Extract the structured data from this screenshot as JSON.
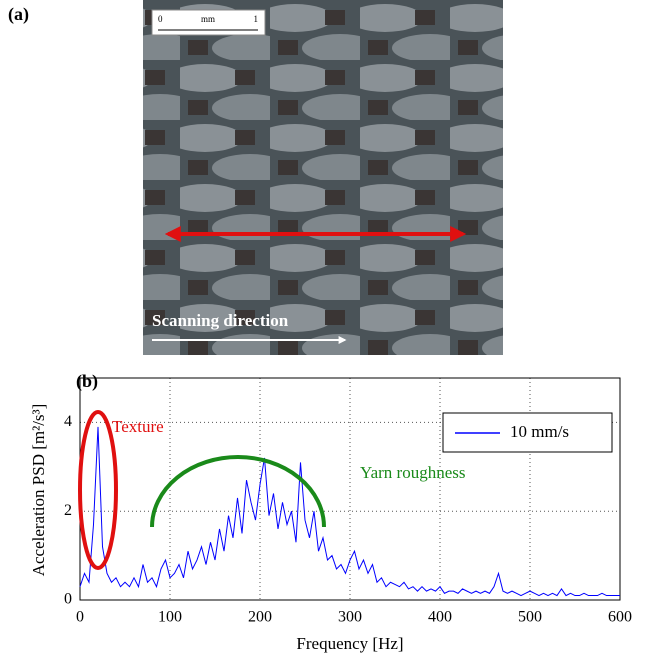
{
  "panel_a": {
    "label": "(a)",
    "scale_bar": [
      "0",
      "mm",
      "1"
    ],
    "caption": "Scanning direction"
  },
  "chart_data": {
    "type": "line",
    "panel_label": "(b)",
    "xlabel": "Frequency [Hz]",
    "ylabel": "Acceleration  PSD [m²/s³]",
    "annotations": [
      "Texture",
      "Yarn roughness"
    ],
    "x": [
      0,
      5,
      10,
      15,
      20,
      25,
      30,
      35,
      40,
      45,
      50,
      55,
      60,
      65,
      70,
      75,
      80,
      85,
      90,
      95,
      100,
      105,
      110,
      115,
      120,
      125,
      130,
      135,
      140,
      145,
      150,
      155,
      160,
      165,
      170,
      175,
      180,
      185,
      190,
      195,
      200,
      205,
      210,
      215,
      220,
      225,
      230,
      235,
      240,
      245,
      250,
      255,
      260,
      265,
      270,
      275,
      280,
      285,
      290,
      295,
      300,
      305,
      310,
      315,
      320,
      325,
      330,
      335,
      340,
      345,
      350,
      355,
      360,
      365,
      370,
      375,
      380,
      385,
      390,
      395,
      400,
      405,
      410,
      415,
      420,
      425,
      430,
      435,
      440,
      445,
      450,
      455,
      460,
      465,
      470,
      475,
      480,
      485,
      490,
      495,
      500,
      505,
      510,
      515,
      520,
      525,
      530,
      535,
      540,
      545,
      550,
      555,
      560,
      565,
      570,
      575,
      580,
      585,
      590,
      595,
      600
    ],
    "series": [
      {
        "name": "10 mm/s",
        "color": "#0000ff",
        "values": [
          0.3,
          0.6,
          0.4,
          1.7,
          3.9,
          1.2,
          0.6,
          0.4,
          0.5,
          0.3,
          0.4,
          0.3,
          0.5,
          0.3,
          0.8,
          0.4,
          0.5,
          0.3,
          0.7,
          0.9,
          0.5,
          0.6,
          0.8,
          0.5,
          1.1,
          0.7,
          0.9,
          1.2,
          0.8,
          1.3,
          0.9,
          1.6,
          1.1,
          1.9,
          1.4,
          2.3,
          1.5,
          2.7,
          2.2,
          1.8,
          2.6,
          3.2,
          1.9,
          2.4,
          1.6,
          2.2,
          1.7,
          2.0,
          1.3,
          3.1,
          1.8,
          1.4,
          2.0,
          1.1,
          1.4,
          0.9,
          1.0,
          0.7,
          0.8,
          0.6,
          0.9,
          1.1,
          0.7,
          0.9,
          0.6,
          0.8,
          0.4,
          0.5,
          0.3,
          0.4,
          0.35,
          0.3,
          0.4,
          0.25,
          0.3,
          0.2,
          0.3,
          0.2,
          0.25,
          0.2,
          0.3,
          0.15,
          0.2,
          0.2,
          0.15,
          0.25,
          0.2,
          0.15,
          0.2,
          0.15,
          0.2,
          0.15,
          0.3,
          0.6,
          0.2,
          0.15,
          0.2,
          0.15,
          0.1,
          0.15,
          0.2,
          0.15,
          0.1,
          0.15,
          0.1,
          0.15,
          0.1,
          0.25,
          0.1,
          0.15,
          0.1,
          0.1,
          0.15,
          0.1,
          0.1,
          0.1,
          0.15,
          0.1,
          0.1,
          0.1,
          0.1
        ]
      }
    ],
    "xlim": [
      0,
      600
    ],
    "xticks": [
      0,
      100,
      200,
      300,
      400,
      500,
      600
    ],
    "ylim": [
      0,
      5
    ],
    "yticks": [
      0,
      2,
      4
    ],
    "grid": true,
    "legend": "upper right"
  }
}
